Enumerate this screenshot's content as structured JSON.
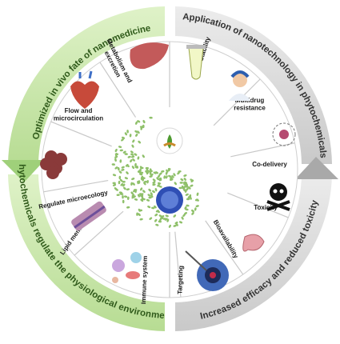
{
  "ring_left": {
    "top_label": "Optimized in vivo fate of nanomedicine",
    "bottom_label": "Phytochemicals regulate the physiological environment"
  },
  "ring_right": {
    "top_label": "Application of nanotechnology in phytochemicals",
    "bottom_label": "Increased efficacy and reduced toxicity"
  },
  "segments_left": [
    {
      "label_lines": [
        "Metabolism and",
        "excretion"
      ],
      "icon": "liver-icon"
    },
    {
      "label_lines": [
        "Flow and",
        "microcirculation"
      ],
      "icon": "heart-icon"
    },
    {
      "label_lines": [
        "Regulate microecology"
      ],
      "icon": "microbe-icon"
    },
    {
      "label_lines": [
        "Lipid membranes"
      ],
      "icon": "membrane-icon"
    },
    {
      "label_lines": [
        "Immune system"
      ],
      "icon": "immune-cells-icon"
    }
  ],
  "segments_right": [
    {
      "label_lines": [
        "Stability"
      ],
      "icon": "tube-icon"
    },
    {
      "label_lines": [
        "Multidrug",
        "resistance"
      ],
      "icon": "doctor-icon"
    },
    {
      "label_lines": [
        "Co-delivery"
      ],
      "icon": "nanocarrier-icon"
    },
    {
      "label_lines": [
        "Toxicity"
      ],
      "icon": "skull-icon"
    },
    {
      "label_lines": [
        "Bioavailability"
      ],
      "icon": "intestine-icon"
    },
    {
      "label_lines": [
        "Targeting"
      ],
      "icon": "target-icon"
    }
  ],
  "colors": {
    "green_band": "#c6e6a6",
    "green_dark": "#7cb84a",
    "gray_band": "#d9d9d9",
    "gray_dark": "#9a9a9a",
    "segment_fill": "#ffffff",
    "dots": "#8fc06a"
  }
}
